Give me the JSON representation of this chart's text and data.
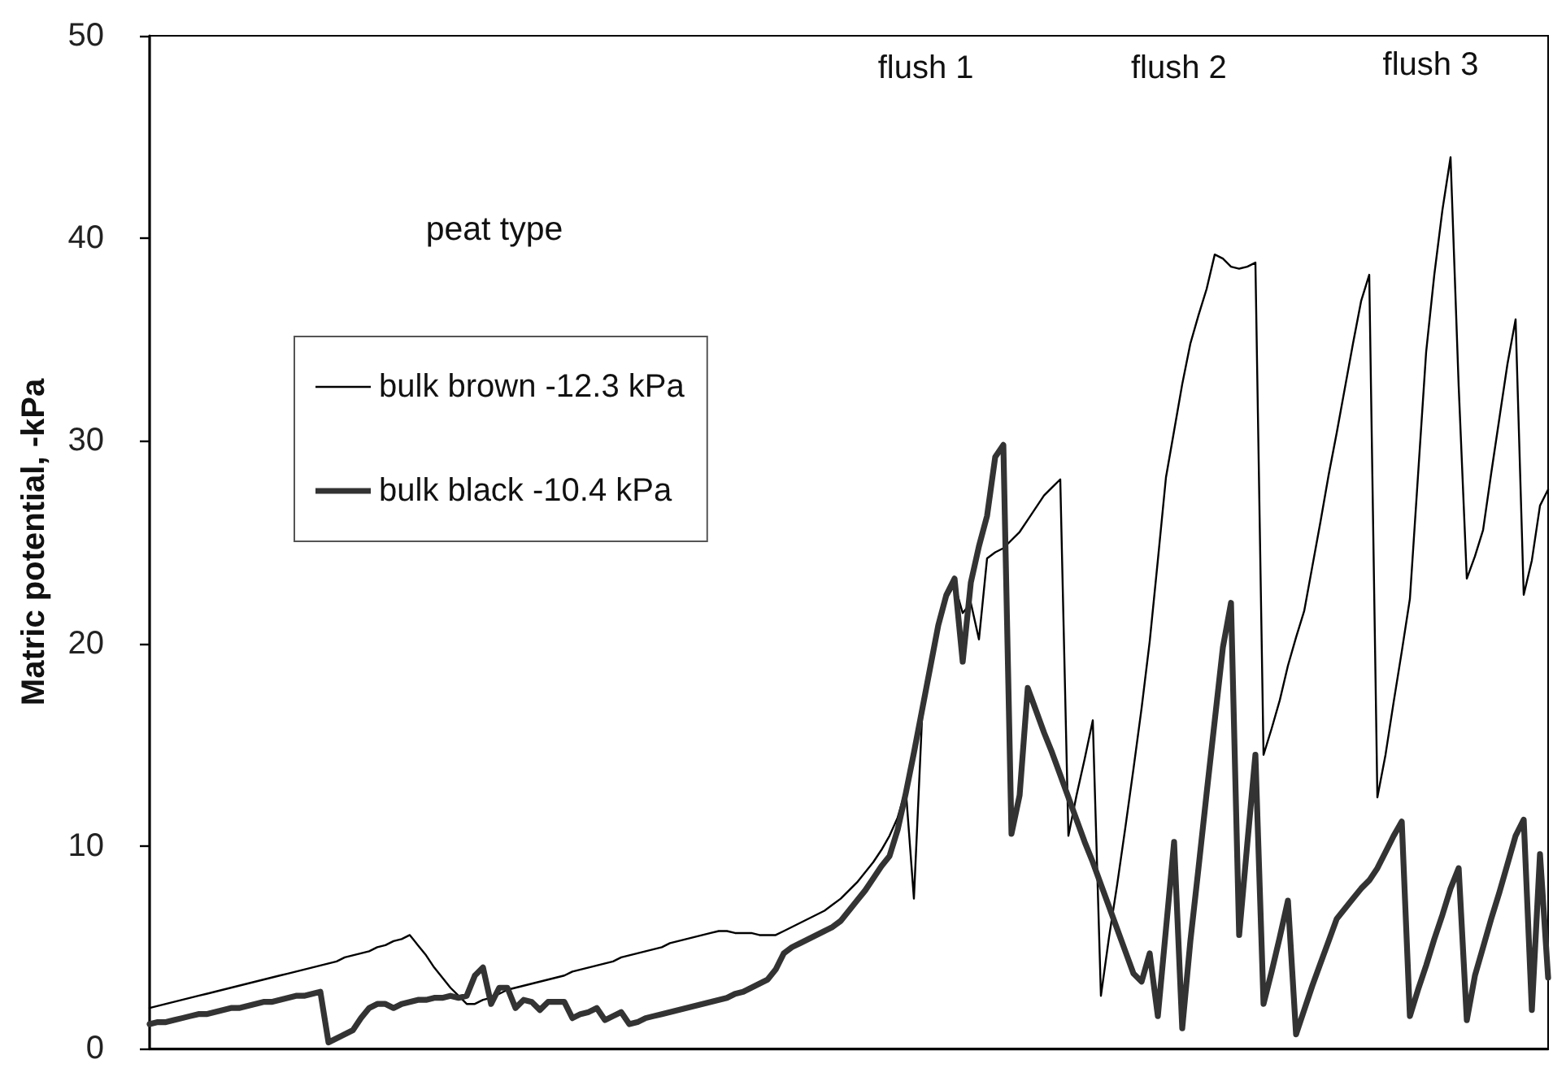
{
  "chart_data": {
    "type": "line",
    "ylabel": "Matric potential, -kPa",
    "legend_title": "peat type",
    "annotations": [
      "flush 1",
      "flush 2",
      "flush 3"
    ],
    "categories": [
      null,
      null,
      null,
      null,
      null,
      null,
      null,
      null,
      null,
      null,
      null,
      null,
      null,
      null,
      null,
      null,
      null,
      null,
      null,
      null,
      null,
      null,
      null,
      null,
      null,
      null,
      null,
      null,
      null,
      null,
      null,
      null,
      null,
      null,
      null,
      null,
      null,
      null,
      null,
      null,
      null,
      null,
      null,
      null,
      null,
      null,
      null,
      null,
      null,
      null,
      null,
      null,
      null,
      null,
      null,
      null,
      null,
      null,
      null,
      null,
      null,
      null,
      null,
      null,
      null,
      null,
      null,
      null,
      null,
      null,
      null,
      null,
      null,
      null,
      null,
      null,
      null,
      null,
      null,
      null,
      null,
      null,
      null,
      null,
      null,
      null,
      null,
      null,
      null,
      null,
      null,
      null,
      null,
      null,
      null,
      null,
      null,
      null,
      null,
      null,
      null,
      null,
      null,
      null,
      null,
      null,
      null,
      null,
      null,
      null,
      null,
      null,
      null,
      null,
      null,
      null,
      null,
      null,
      null,
      null,
      null,
      null,
      null,
      null,
      null,
      null,
      null,
      null,
      null,
      null,
      null,
      null,
      null,
      null,
      null,
      null,
      null,
      null,
      null,
      null,
      null,
      null,
      null,
      null,
      null,
      null,
      null,
      null,
      null,
      null,
      null,
      null,
      null,
      null,
      null,
      null,
      null,
      null,
      null,
      null,
      null,
      null,
      null,
      null,
      null,
      null,
      null,
      null,
      null,
      null,
      null,
      null,
      null
    ],
    "series": [
      {
        "name": "bulk brown -12.3 kPa",
        "color": "#000000",
        "values": [
          2.0,
          2.1,
          2.2,
          2.3,
          2.4,
          2.5,
          2.6,
          2.7,
          2.8,
          2.9,
          3.0,
          3.1,
          3.2,
          3.3,
          3.4,
          3.5,
          3.6,
          3.7,
          3.8,
          3.9,
          4.0,
          4.1,
          4.2,
          4.3,
          4.5,
          4.6,
          4.7,
          4.8,
          5.0,
          5.1,
          5.3,
          5.4,
          5.6,
          5.1,
          4.6,
          4.0,
          3.5,
          3.0,
          2.6,
          2.2,
          2.2,
          2.4,
          2.5,
          2.7,
          2.9,
          3.0,
          3.1,
          3.2,
          3.3,
          3.4,
          3.5,
          3.6,
          3.8,
          3.9,
          4.0,
          4.1,
          4.2,
          4.3,
          4.5,
          4.6,
          4.7,
          4.8,
          4.9,
          5.0,
          5.2,
          5.3,
          5.4,
          5.5,
          5.6,
          5.7,
          5.8,
          5.8,
          5.7,
          5.7,
          5.7,
          5.6,
          5.6,
          5.6,
          5.8,
          6.0,
          6.2,
          6.4,
          6.6,
          6.8,
          7.1,
          7.4,
          7.8,
          8.2,
          8.7,
          9.2,
          9.8,
          10.5,
          11.4,
          12.8,
          7.4,
          16.3,
          18.6,
          20.7,
          22.2,
          22.9,
          21.5,
          22.0,
          20.2,
          24.2,
          24.5,
          24.7,
          25.1,
          25.5,
          26.1,
          26.7,
          27.3,
          27.7,
          28.1,
          10.5,
          12.5,
          14.3,
          16.2,
          2.6,
          5.5,
          8.1,
          10.9,
          13.8,
          16.8,
          20.1,
          24.1,
          28.2,
          30.5,
          32.8,
          34.8,
          36.2,
          37.5,
          39.2,
          39.0,
          38.6,
          38.5,
          38.6,
          38.8,
          14.5,
          15.8,
          17.2,
          18.9,
          20.3,
          21.6,
          23.8,
          26.0,
          28.3,
          30.4,
          32.6,
          34.8,
          36.9,
          38.2,
          12.4,
          14.5,
          17.1,
          19.6,
          22.2,
          28.3,
          34.4,
          38.2,
          41.4,
          44.0,
          32.7,
          23.2,
          24.3,
          25.6,
          28.4,
          31.1,
          33.8,
          36.0,
          22.4,
          24.1,
          26.8,
          27.6
        ]
      },
      {
        "name": "bulk black -10.4 kPa",
        "color": "#333333",
        "values": [
          1.2,
          1.3,
          1.3,
          1.4,
          1.5,
          1.6,
          1.7,
          1.7,
          1.8,
          1.9,
          2.0,
          2.0,
          2.1,
          2.2,
          2.3,
          2.3,
          2.4,
          2.5,
          2.6,
          2.6,
          2.7,
          2.8,
          0.3,
          0.5,
          0.7,
          0.9,
          1.5,
          2.0,
          2.2,
          2.2,
          2.0,
          2.2,
          2.3,
          2.4,
          2.4,
          2.5,
          2.5,
          2.6,
          2.5,
          2.6,
          3.6,
          4.0,
          2.2,
          3.0,
          3.0,
          2.0,
          2.4,
          2.3,
          1.9,
          2.3,
          2.3,
          2.3,
          1.5,
          1.7,
          1.8,
          2.0,
          1.4,
          1.6,
          1.8,
          1.2,
          1.3,
          1.5,
          1.6,
          1.7,
          1.8,
          1.9,
          2.0,
          2.1,
          2.2,
          2.3,
          2.4,
          2.5,
          2.7,
          2.8,
          3.0,
          3.2,
          3.4,
          3.9,
          4.7,
          5.0,
          5.2,
          5.4,
          5.6,
          5.8,
          6.0,
          6.3,
          6.8,
          7.3,
          7.8,
          8.4,
          9.0,
          9.5,
          10.8,
          12.6,
          14.6,
          16.7,
          18.8,
          20.9,
          22.4,
          23.2,
          19.1,
          23.0,
          24.8,
          26.3,
          29.2,
          29.8,
          10.6,
          12.5,
          17.8,
          16.7,
          15.6,
          14.6,
          13.5,
          12.4,
          11.3,
          10.2,
          9.2,
          8.1,
          7.0,
          5.9,
          4.8,
          3.7,
          3.3,
          4.7,
          1.6,
          5.9,
          10.2,
          1.0,
          5.3,
          8.9,
          12.6,
          16.2,
          19.8,
          22.0,
          5.6,
          10.1,
          14.5,
          2.2,
          3.8,
          5.5,
          7.3,
          0.7,
          1.9,
          3.1,
          4.2,
          5.3,
          6.4,
          6.9,
          7.4,
          7.9,
          8.3,
          8.9,
          9.7,
          10.5,
          11.2,
          1.6,
          2.9,
          4.1,
          5.4,
          6.6,
          7.9,
          8.9,
          1.4,
          3.6,
          5.0,
          6.4,
          7.7,
          9.1,
          10.5,
          11.3,
          1.9,
          9.6,
          3.5
        ]
      }
    ],
    "ylim": [
      0,
      50
    ],
    "yticks": [
      0,
      10,
      20,
      30,
      40,
      50
    ],
    "grid": false,
    "legend": "top left",
    "marker": "none",
    "tick_labels": "y"
  }
}
